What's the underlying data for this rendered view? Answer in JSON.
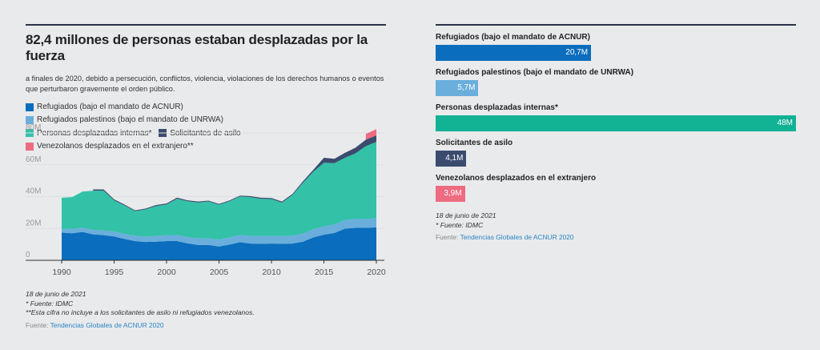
{
  "left": {
    "title": "82,4 millones de personas estaban desplazadas por la fuerza",
    "subtitle": "a finales de 2020, debido a persecución, conflictos, violencia, violaciones de los derechos humanos o eventos que perturbaron gravemente el orden público.",
    "notes": {
      "date": "18 de junio de 2021",
      "source_note": "* Fuente: IDMC",
      "footnote": "**Esta cifra no incluye a los solicitantes de asilo ni refugiados venezolanos.",
      "source_label": "Fuente:",
      "source_link": "Tendencias Globales de ACNUR 2020"
    }
  },
  "right": {
    "notes": {
      "date": "18 de junio de 2021",
      "source_note": "* Fuente: IDMC",
      "source_label": "Fuente:",
      "source_link": "Tendencias Globales de ACNUR 2020"
    }
  },
  "colors": {
    "refugees": "#0a6dbd",
    "palestine": "#6aaedc",
    "idp": "#33c1a8",
    "asylum": "#3b4b6e",
    "venezuela": "#ee6b80",
    "idp_bar": "#12b294"
  },
  "chart_data": [
    {
      "type": "area",
      "stacked": true,
      "title": "82,4 millones de personas estaban desplazadas por la fuerza",
      "xlabel": "",
      "ylabel": "",
      "xlim": [
        1990,
        2020
      ],
      "ylim": [
        0,
        80
      ],
      "x_ticks": [
        1990,
        1995,
        2000,
        2005,
        2010,
        2015,
        2020
      ],
      "y_ticks": [
        0,
        20,
        40,
        60,
        80
      ],
      "y_tick_labels": [
        "0",
        "20M",
        "40M",
        "60M",
        "80M"
      ],
      "grid": true,
      "legend_position": "top",
      "x": [
        1990,
        1991,
        1992,
        1993,
        1994,
        1995,
        1996,
        1997,
        1998,
        1999,
        2000,
        2001,
        2002,
        2003,
        2004,
        2005,
        2006,
        2007,
        2008,
        2009,
        2010,
        2011,
        2012,
        2013,
        2014,
        2015,
        2016,
        2017,
        2018,
        2019,
        2020
      ],
      "series": [
        {
          "name": "Refugiados (bajo el mandato de ACNUR)",
          "key": "refugees",
          "values": [
            17.4,
            17.0,
            17.8,
            16.3,
            15.8,
            15.0,
            13.4,
            12.1,
            11.5,
            11.7,
            12.1,
            12.1,
            10.6,
            9.6,
            9.6,
            8.7,
            9.9,
            11.4,
            10.5,
            10.4,
            10.5,
            10.4,
            10.5,
            11.7,
            14.4,
            16.1,
            17.2,
            19.9,
            20.4,
            20.4,
            20.7
          ]
        },
        {
          "name": "Refugiados palestinos (bajo el mandato de UNRWA)",
          "key": "palestine",
          "values": [
            2.5,
            2.6,
            2.7,
            2.8,
            2.9,
            3.1,
            3.2,
            3.3,
            3.4,
            3.5,
            3.7,
            3.8,
            4.0,
            4.1,
            4.2,
            4.3,
            4.4,
            4.6,
            4.7,
            4.8,
            4.8,
            4.8,
            5.0,
            5.0,
            5.1,
            5.2,
            5.3,
            5.4,
            5.5,
            5.6,
            5.7
          ]
        },
        {
          "name": "Personas desplazadas internas*",
          "key": "idp",
          "values": [
            19.4,
            20.1,
            22.7,
            24.6,
            25.0,
            19.6,
            17.8,
            15.5,
            17.1,
            18.9,
            19.3,
            22.8,
            22.5,
            22.6,
            23.2,
            21.9,
            22.8,
            24.1,
            24.5,
            23.4,
            23.2,
            21.0,
            25.6,
            32.0,
            36.2,
            40.0,
            38.5,
            39.1,
            41.3,
            45.7,
            48.0
          ]
        },
        {
          "name": "Solicitantes de asilo",
          "key": "asylum",
          "values": [
            0,
            0,
            0,
            0.8,
            0.8,
            0.6,
            0.6,
            0.5,
            0.5,
            0.6,
            0.6,
            0.7,
            0.6,
            0.6,
            0.5,
            0.5,
            0.5,
            0.5,
            0.6,
            0.7,
            0.6,
            0.7,
            0.6,
            0.9,
            1.2,
            3.1,
            2.8,
            3.1,
            3.5,
            4.1,
            4.1
          ]
        },
        {
          "name": "Venezolanos desplazados en el extranjero**",
          "key": "venezuela",
          "values": [
            0,
            0,
            0,
            0,
            0,
            0,
            0,
            0,
            0,
            0,
            0,
            0,
            0,
            0,
            0,
            0,
            0,
            0,
            0,
            0,
            0,
            0,
            0,
            0,
            0,
            0,
            0,
            0,
            0,
            3.6,
            3.9
          ]
        }
      ]
    },
    {
      "type": "bar",
      "orientation": "horizontal",
      "categories": [
        "Refugiados (bajo el mandato de ACNUR)",
        "Refugiados palestinos (bajo el mandato de UNRWA)",
        "Personas desplazadas internas*",
        "Solicitantes de asilo",
        "Venezolanos desplazados en el extranjero"
      ],
      "keys": [
        "refugees",
        "palestine",
        "idp_bar",
        "asylum",
        "venezuela"
      ],
      "values": [
        20.7,
        5.7,
        48,
        4.1,
        3.9
      ],
      "value_labels": [
        "20,7M",
        "5,7M",
        "48M",
        "4,1M",
        "3,9M"
      ],
      "xlim": [
        0,
        48
      ]
    }
  ]
}
